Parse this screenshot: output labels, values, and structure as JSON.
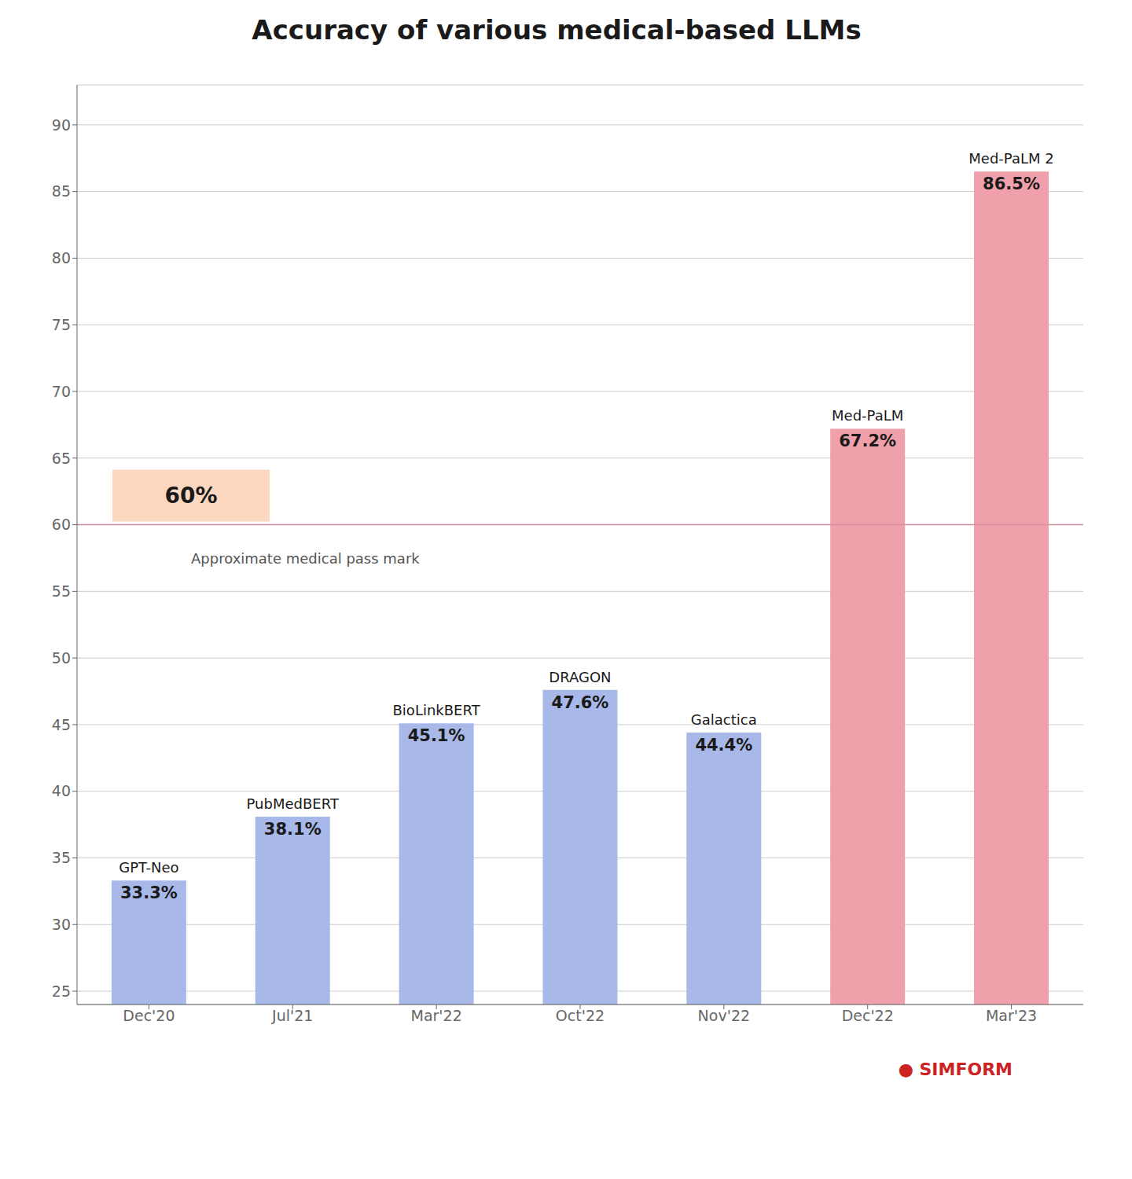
{
  "chart_data": {
    "type": "bar",
    "title": "Accuracy of various medical-based LLMs",
    "categories": [
      "Dec'20",
      "Jul'21",
      "Mar'22",
      "Oct'22",
      "Nov'22",
      "Dec'22",
      "Mar'23"
    ],
    "values": [
      33.3,
      38.1,
      45.1,
      47.6,
      44.4,
      67.2,
      86.5
    ],
    "value_labels": [
      "33.3%",
      "38.1%",
      "45.1%",
      "47.6%",
      "44.4%",
      "67.2%",
      "86.5%"
    ],
    "data_labels": true,
    "bar_labels": [
      "GPT-Neo",
      "PubMedBERT",
      "BioLinkBERT",
      "DRAGON",
      "Galactica",
      "Med-PaLM",
      "Med-PaLM 2"
    ],
    "colors": [
      "#a8b8e8",
      "#a8b8e8",
      "#a8b8e8",
      "#a8b8e8",
      "#a8b8e8",
      "#f0a0aa",
      "#f0a0aa"
    ],
    "reference_line": {
      "y": 60,
      "label": "60%",
      "text": "Approximate medical pass mark",
      "color": "#d4909a",
      "box_color": "#fcd8c0"
    },
    "annotations": [
      {
        "text": "● SIMFORM",
        "color": "#cc2222"
      }
    ],
    "ylim": [
      24,
      93
    ],
    "yticks": [
      25,
      30,
      35,
      40,
      45,
      50,
      55,
      60,
      65,
      70,
      75,
      80,
      85,
      90
    ],
    "grid": true
  }
}
